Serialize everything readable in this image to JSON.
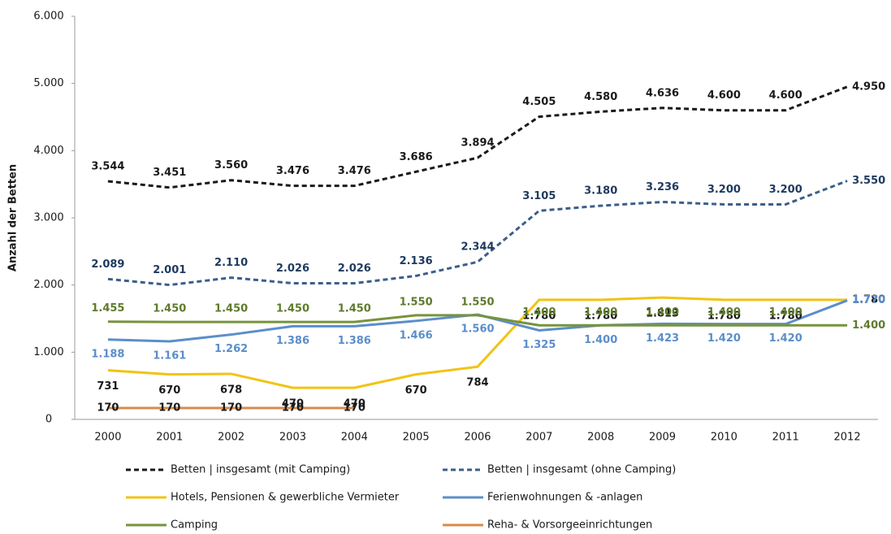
{
  "chart_data": {
    "type": "line",
    "y_label": "Anzahl der Betten",
    "categories": [
      "2000",
      "2001",
      "2002",
      "2003",
      "2004",
      "2005",
      "2006",
      "2007",
      "2008",
      "2009",
      "2010",
      "2011",
      "2012"
    ],
    "ylim": [
      0,
      6000
    ],
    "yticks": [
      0,
      {
        "value": 1000,
        "label": "1.000"
      },
      {
        "value": 2000,
        "label": "2.000"
      },
      {
        "value": 3000,
        "label": "3.000"
      },
      {
        "value": 4000,
        "label": "4.000"
      },
      {
        "value": 5000,
        "label": "5.000"
      },
      {
        "value": 6000,
        "label": "6.000"
      }
    ],
    "series": [
      {
        "name": "Betten | insgesamt (mit Camping)",
        "color": "#1a1a1a",
        "label_color": "#1a1a1a",
        "dashed": true,
        "values": [
          3544,
          3451,
          3560,
          3476,
          3476,
          3686,
          3894,
          4505,
          4580,
          4636,
          4600,
          4600,
          4950
        ],
        "value_labels": [
          "3.544",
          "3.451",
          "3.560",
          "3.476",
          "3.476",
          "3.686",
          "3.894",
          "4.505",
          "4.580",
          "4.636",
          "4.600",
          "4.600",
          "4.950"
        ]
      },
      {
        "name": "Betten | insgesamt (ohne Camping)",
        "color": "#3b5e8c",
        "label_color": "#1f3a5f",
        "dashed": true,
        "values": [
          2089,
          2001,
          2110,
          2026,
          2026,
          2136,
          2344,
          3105,
          3180,
          3236,
          3200,
          3200,
          3550
        ],
        "value_labels": [
          "2.089",
          "2.001",
          "2.110",
          "2.026",
          "2.026",
          "2.136",
          "2.344",
          "3.105",
          "3.180",
          "3.236",
          "3.200",
          "3.200",
          "3.550"
        ]
      },
      {
        "name": "Hotels, Pensionen & gewerbliche Vermieter",
        "color": "#f2c314",
        "label_color": "#1a1a1a",
        "dashed": false,
        "values": [
          731,
          670,
          678,
          470,
          470,
          670,
          784,
          1780,
          1780,
          1813,
          1780,
          1780,
          1780
        ],
        "value_labels": [
          "731",
          "670",
          "678",
          "470",
          "470",
          "670",
          "784",
          "1.780",
          "1.780",
          "1.813",
          "1.780",
          "1.780",
          "1.780"
        ]
      },
      {
        "name": "Ferienwohnungen & -anlagen",
        "color": "#5b8ecb",
        "label_color": "#5b8ecb",
        "dashed": false,
        "values": [
          1188,
          1161,
          1262,
          1386,
          1386,
          1466,
          1560,
          1325,
          1400,
          1423,
          1420,
          1420,
          1770
        ],
        "value_labels": [
          "1.188",
          "1.161",
          "1.262",
          "1.386",
          "1.386",
          "1.466",
          "1.560",
          "1.325",
          "1.400",
          "1.423",
          "1.420",
          "1.420",
          "1.770"
        ]
      },
      {
        "name": "Camping",
        "color": "#77933c",
        "label_color": "#5f7a2c",
        "dashed": false,
        "values": [
          1455,
          1450,
          1450,
          1450,
          1450,
          1550,
          1550,
          1400,
          1400,
          1400,
          1400,
          1400,
          1400
        ],
        "value_labels": [
          "1.455",
          "1.450",
          "1.450",
          "1.450",
          "1.450",
          "1.550",
          "1.550",
          "1.400",
          "1.400",
          "1.400",
          "1.400",
          "1.400",
          "1.400"
        ]
      },
      {
        "name": "Reha- & Vorsorgeeinrichtungen",
        "color": "#d98a4a",
        "label_color": "#1a1a1a",
        "dashed": false,
        "values": [
          170,
          170,
          170,
          170,
          170,
          null,
          null,
          null,
          null,
          null,
          null,
          null,
          null
        ],
        "value_labels": [
          "170",
          "170",
          "170",
          "170",
          "170",
          null,
          null,
          null,
          null,
          null,
          null,
          null,
          null
        ]
      }
    ]
  }
}
